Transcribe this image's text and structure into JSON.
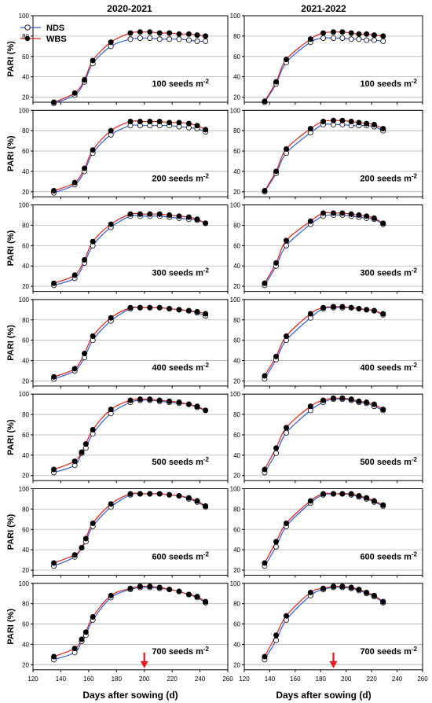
{
  "figure": {
    "column_titles": [
      "2020-2021",
      "2021-2022"
    ],
    "xlabel": "Days after sowing (d)",
    "ylabel": "PARI (%)",
    "legend": [
      {
        "name": "NDS",
        "line_color": "#2f5bd8",
        "marker": "open-circle"
      },
      {
        "name": "WBS",
        "line_color": "#e0201a",
        "marker": "filled-circle"
      }
    ],
    "seed_unit": "seeds m",
    "seed_exponent": "-2",
    "arrow_color": "#e8161a"
  },
  "chart_data": [
    {
      "type": "line",
      "column": 0,
      "density": "100",
      "xlim": [
        120,
        260
      ],
      "ylim": [
        15,
        100
      ],
      "yticks": [
        20,
        40,
        60,
        80,
        100
      ],
      "xticks": [],
      "x": [
        135,
        150,
        157,
        163,
        176,
        190,
        197,
        204,
        211,
        218,
        225,
        232,
        238,
        244
      ],
      "series": [
        {
          "name": "NDS",
          "values": [
            14,
            22,
            35,
            53,
            70,
            77,
            78,
            78,
            77,
            77,
            77,
            76,
            75,
            75
          ]
        },
        {
          "name": "WBS",
          "values": [
            15,
            24,
            37,
            56,
            74,
            83,
            84,
            84,
            83,
            83,
            82,
            82,
            81,
            80
          ]
        }
      ]
    },
    {
      "type": "line",
      "column": 1,
      "density": "100",
      "xlim": [
        120,
        260
      ],
      "ylim": [
        15,
        100
      ],
      "yticks": [
        20,
        40,
        60,
        80,
        100
      ],
      "xticks": [],
      "x": [
        136,
        145,
        153,
        172,
        182,
        190,
        197,
        204,
        210,
        216,
        222,
        229
      ],
      "series": [
        {
          "name": "NDS",
          "values": [
            15,
            33,
            54,
            74,
            78,
            78,
            78,
            77,
            77,
            76,
            76,
            75
          ]
        },
        {
          "name": "WBS",
          "values": [
            16,
            35,
            57,
            77,
            83,
            84,
            84,
            83,
            82,
            82,
            81,
            80
          ]
        }
      ]
    },
    {
      "type": "line",
      "column": 0,
      "density": "200",
      "xlim": [
        120,
        260
      ],
      "ylim": [
        15,
        100
      ],
      "yticks": [
        20,
        40,
        60,
        80,
        100
      ],
      "xticks": [],
      "x": [
        135,
        150,
        157,
        163,
        176,
        190,
        197,
        204,
        211,
        218,
        225,
        232,
        238,
        244
      ],
      "series": [
        {
          "name": "NDS",
          "values": [
            19,
            27,
            40,
            58,
            76,
            85,
            85,
            85,
            85,
            85,
            84,
            83,
            82,
            79
          ]
        },
        {
          "name": "WBS",
          "values": [
            21,
            29,
            43,
            61,
            80,
            89,
            89,
            89,
            89,
            88,
            88,
            87,
            85,
            81
          ]
        }
      ]
    },
    {
      "type": "line",
      "column": 1,
      "density": "200",
      "xlim": [
        120,
        260
      ],
      "ylim": [
        15,
        100
      ],
      "yticks": [
        20,
        40,
        60,
        80,
        100
      ],
      "xticks": [],
      "x": [
        136,
        145,
        153,
        172,
        182,
        190,
        197,
        204,
        210,
        216,
        222,
        229
      ],
      "series": [
        {
          "name": "NDS",
          "values": [
            20,
            38,
            58,
            78,
            86,
            86,
            86,
            85,
            85,
            85,
            84,
            80
          ]
        },
        {
          "name": "WBS",
          "values": [
            21,
            40,
            62,
            82,
            89,
            90,
            90,
            89,
            88,
            87,
            86,
            82
          ]
        }
      ]
    },
    {
      "type": "line",
      "column": 0,
      "density": "300",
      "xlim": [
        120,
        260
      ],
      "ylim": [
        15,
        100
      ],
      "yticks": [
        20,
        40,
        60,
        80,
        100
      ],
      "xticks": [],
      "x": [
        135,
        150,
        157,
        163,
        176,
        190,
        197,
        204,
        211,
        218,
        225,
        232,
        238,
        244
      ],
      "series": [
        {
          "name": "NDS",
          "values": [
            21,
            28,
            43,
            60,
            78,
            89,
            89,
            89,
            89,
            88,
            87,
            86,
            85,
            82
          ]
        },
        {
          "name": "WBS",
          "values": [
            23,
            31,
            46,
            64,
            81,
            91,
            91,
            91,
            91,
            90,
            89,
            88,
            86,
            82
          ]
        }
      ]
    },
    {
      "type": "line",
      "column": 1,
      "density": "300",
      "xlim": [
        120,
        260
      ],
      "ylim": [
        15,
        100
      ],
      "yticks": [
        20,
        40,
        60,
        80,
        100
      ],
      "xticks": [],
      "x": [
        136,
        145,
        153,
        172,
        182,
        190,
        197,
        204,
        210,
        216,
        222,
        229
      ],
      "series": [
        {
          "name": "NDS",
          "values": [
            21,
            40,
            60,
            81,
            89,
            90,
            90,
            89,
            88,
            87,
            86,
            81
          ]
        },
        {
          "name": "WBS",
          "values": [
            23,
            43,
            65,
            84,
            92,
            92,
            92,
            91,
            90,
            89,
            87,
            82
          ]
        }
      ]
    },
    {
      "type": "line",
      "column": 0,
      "density": "400",
      "xlim": [
        120,
        260
      ],
      "ylim": [
        15,
        100
      ],
      "yticks": [
        20,
        40,
        60,
        80,
        100
      ],
      "xticks": [],
      "x": [
        135,
        150,
        157,
        163,
        176,
        190,
        197,
        204,
        211,
        218,
        225,
        232,
        238,
        244
      ],
      "series": [
        {
          "name": "NDS",
          "values": [
            22,
            30,
            43,
            60,
            79,
            91,
            92,
            92,
            92,
            91,
            90,
            89,
            87,
            84
          ]
        },
        {
          "name": "WBS",
          "values": [
            24,
            32,
            47,
            64,
            82,
            92,
            92,
            92,
            92,
            91,
            90,
            89,
            88,
            86
          ]
        }
      ]
    },
    {
      "type": "line",
      "column": 1,
      "density": "400",
      "xlim": [
        120,
        260
      ],
      "ylim": [
        15,
        100
      ],
      "yticks": [
        20,
        40,
        60,
        80,
        100
      ],
      "xticks": [],
      "x": [
        136,
        145,
        153,
        172,
        182,
        190,
        197,
        204,
        210,
        216,
        222,
        229
      ],
      "series": [
        {
          "name": "NDS",
          "values": [
            22,
            41,
            60,
            82,
            91,
            92,
            92,
            92,
            91,
            90,
            89,
            85
          ]
        },
        {
          "name": "WBS",
          "values": [
            25,
            44,
            64,
            86,
            92,
            93,
            93,
            92,
            91,
            90,
            89,
            86
          ]
        }
      ]
    },
    {
      "type": "line",
      "column": 0,
      "density": "500",
      "xlim": [
        120,
        260
      ],
      "ylim": [
        15,
        100
      ],
      "yticks": [
        20,
        40,
        60,
        80,
        100
      ],
      "xticks": [],
      "x": [
        135,
        150,
        155,
        158,
        163,
        176,
        190,
        197,
        204,
        211,
        218,
        225,
        232,
        238,
        244
      ],
      "series": [
        {
          "name": "NDS",
          "values": [
            23,
            30,
            42,
            47,
            61,
            81,
            92,
            94,
            94,
            93,
            92,
            91,
            90,
            87,
            84
          ]
        },
        {
          "name": "WBS",
          "values": [
            26,
            34,
            43,
            51,
            65,
            85,
            94,
            95,
            95,
            94,
            93,
            92,
            90,
            88,
            84
          ]
        }
      ]
    },
    {
      "type": "line",
      "column": 1,
      "density": "500",
      "xlim": [
        120,
        260
      ],
      "ylim": [
        15,
        100
      ],
      "yticks": [
        20,
        40,
        60,
        80,
        100
      ],
      "xticks": [],
      "x": [
        136,
        145,
        153,
        172,
        182,
        190,
        197,
        204,
        210,
        216,
        222,
        229
      ],
      "series": [
        {
          "name": "NDS",
          "values": [
            23,
            42,
            62,
            84,
            92,
            95,
            95,
            94,
            92,
            91,
            88,
            84
          ]
        },
        {
          "name": "WBS",
          "values": [
            26,
            47,
            67,
            88,
            94,
            96,
            96,
            95,
            93,
            92,
            90,
            85
          ]
        }
      ]
    },
    {
      "type": "line",
      "column": 0,
      "density": "600",
      "xlim": [
        120,
        260
      ],
      "ylim": [
        15,
        100
      ],
      "yticks": [
        20,
        40,
        60,
        80,
        100
      ],
      "xticks": [],
      "x": [
        135,
        150,
        155,
        158,
        163,
        176,
        190,
        197,
        204,
        211,
        218,
        225,
        232,
        238,
        244
      ],
      "series": [
        {
          "name": "NDS",
          "values": [
            24,
            33,
            42,
            48,
            63,
            82,
            94,
            95,
            95,
            95,
            94,
            93,
            90,
            87,
            82
          ]
        },
        {
          "name": "WBS",
          "values": [
            27,
            35,
            42,
            51,
            66,
            85,
            95,
            95,
            95,
            95,
            94,
            93,
            91,
            88,
            83
          ]
        }
      ]
    },
    {
      "type": "line",
      "column": 1,
      "density": "600",
      "xlim": [
        120,
        260
      ],
      "ylim": [
        15,
        100
      ],
      "yticks": [
        20,
        40,
        60,
        80,
        100
      ],
      "xticks": [],
      "x": [
        136,
        145,
        153,
        172,
        182,
        190,
        197,
        204,
        210,
        216,
        222,
        229
      ],
      "series": [
        {
          "name": "NDS",
          "values": [
            24,
            43,
            63,
            86,
            94,
            95,
            95,
            94,
            92,
            90,
            87,
            83
          ]
        },
        {
          "name": "WBS",
          "values": [
            27,
            48,
            66,
            88,
            95,
            95,
            95,
            95,
            93,
            91,
            88,
            84
          ]
        }
      ]
    },
    {
      "type": "line",
      "column": 0,
      "density": "700",
      "xlim": [
        120,
        260
      ],
      "ylim": [
        15,
        100
      ],
      "yticks": [
        20,
        40,
        60,
        80,
        100
      ],
      "xticks": [
        120,
        140,
        160,
        180,
        200,
        220,
        240,
        260
      ],
      "x": [
        135,
        150,
        155,
        158,
        163,
        176,
        190,
        197,
        204,
        211,
        218,
        225,
        232,
        238,
        244
      ],
      "series": [
        {
          "name": "NDS",
          "values": [
            25,
            32,
            43,
            49,
            64,
            86,
            94,
            96,
            96,
            95,
            94,
            92,
            89,
            86,
            81
          ]
        },
        {
          "name": "WBS",
          "values": [
            28,
            36,
            45,
            52,
            67,
            88,
            95,
            97,
            97,
            96,
            94,
            92,
            89,
            87,
            82
          ]
        }
      ]
    },
    {
      "type": "line",
      "column": 1,
      "density": "700",
      "xlim": [
        120,
        260
      ],
      "ylim": [
        15,
        100
      ],
      "yticks": [
        20,
        40,
        60,
        80,
        100
      ],
      "xticks": [
        120,
        140,
        160,
        180,
        200,
        220,
        240,
        260
      ],
      "x": [
        136,
        145,
        153,
        172,
        182,
        190,
        197,
        204,
        210,
        216,
        222,
        229
      ],
      "series": [
        {
          "name": "NDS",
          "values": [
            25,
            44,
            64,
            88,
            94,
            96,
            96,
            95,
            93,
            90,
            87,
            81
          ]
        },
        {
          "name": "WBS",
          "values": [
            28,
            49,
            68,
            91,
            95,
            97,
            97,
            96,
            94,
            91,
            88,
            82
          ]
        }
      ]
    }
  ],
  "arrows": [
    {
      "column": 0,
      "x": 200
    },
    {
      "column": 1,
      "x": 190
    }
  ]
}
